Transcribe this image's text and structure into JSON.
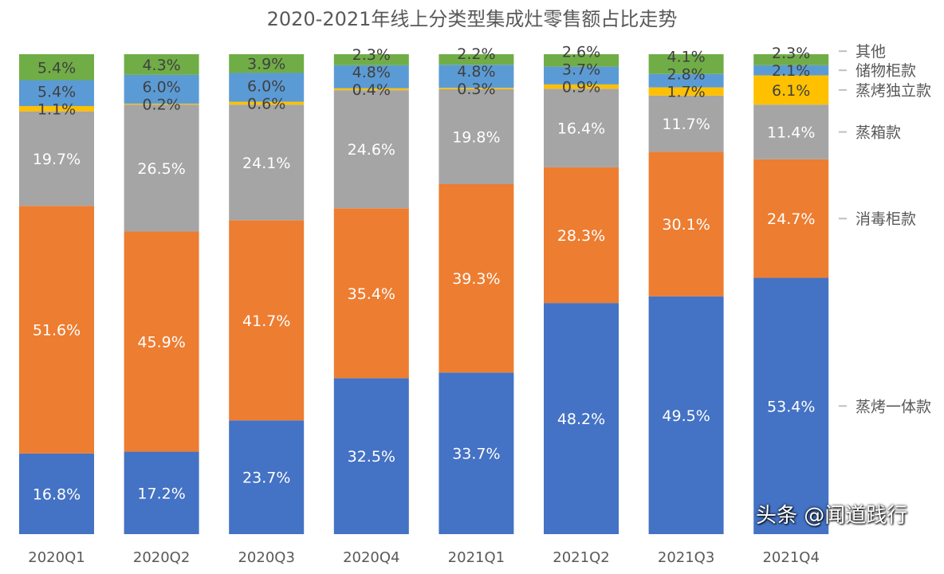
{
  "chart_data": {
    "type": "bar",
    "stacked": true,
    "title": "2020-2021年线上分类型集成灶零售额占比走势",
    "categories": [
      "2020Q1",
      "2020Q2",
      "2020Q3",
      "2020Q4",
      "2021Q1",
      "2021Q2",
      "2021Q3",
      "2021Q4"
    ],
    "ylim": [
      0,
      100
    ],
    "grid": false,
    "legend": "right",
    "series": [
      {
        "name": "蒸烤一体款",
        "color": "#4472C4",
        "values": [
          16.8,
          17.2,
          23.7,
          32.5,
          33.7,
          48.2,
          49.5,
          53.4
        ]
      },
      {
        "name": "消毒柜款",
        "color": "#ED7D31",
        "values": [
          51.6,
          45.9,
          41.7,
          35.4,
          39.3,
          28.3,
          30.1,
          24.7
        ]
      },
      {
        "name": "蒸箱款",
        "color": "#A5A5A5",
        "values": [
          19.7,
          26.5,
          24.1,
          24.6,
          19.8,
          16.4,
          11.7,
          11.4
        ]
      },
      {
        "name": "蒸烤独立款",
        "color": "#FFC000",
        "values": [
          1.1,
          0.2,
          0.6,
          0.4,
          0.3,
          0.9,
          1.7,
          6.1
        ]
      },
      {
        "name": "储物柜款",
        "color": "#5B9BD5",
        "values": [
          5.4,
          6.0,
          6.0,
          4.8,
          4.8,
          3.7,
          2.8,
          2.1
        ]
      },
      {
        "name": "其他",
        "color": "#70AD47",
        "values": [
          5.4,
          4.3,
          3.9,
          2.3,
          2.2,
          2.6,
          4.1,
          2.3
        ]
      }
    ]
  },
  "watermark": "头条 @闻道践行"
}
